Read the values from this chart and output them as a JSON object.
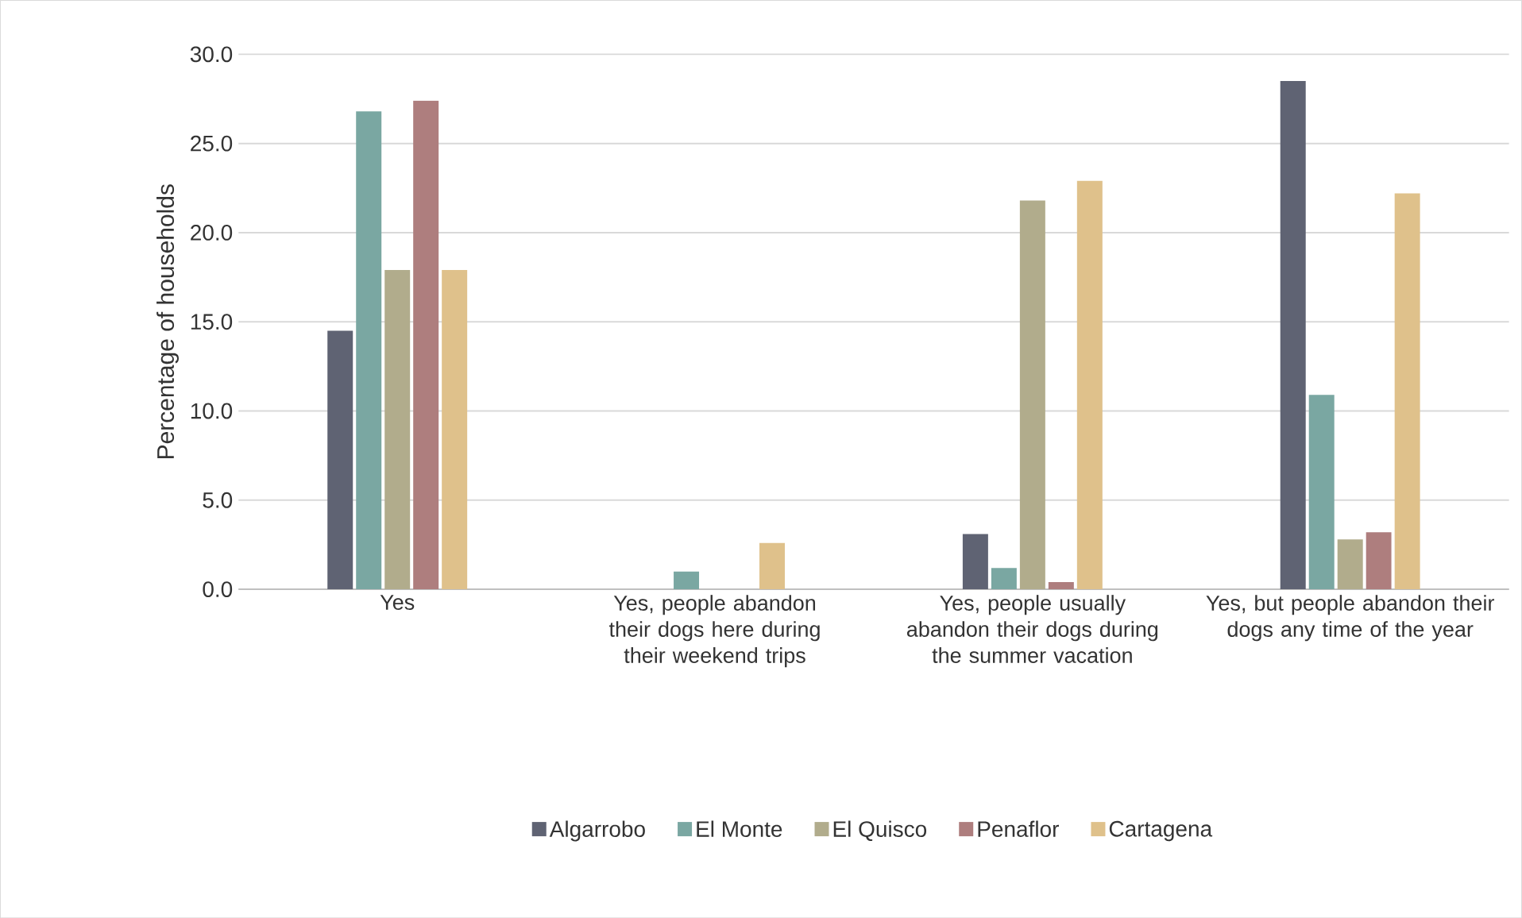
{
  "chart_data": {
    "type": "bar",
    "ylabel": "Percentage of households",
    "categories": [
      "Yes",
      "Yes, people abandon their dogs here during their weekend trips",
      "Yes, people usually abandon their dogs during the summer vacation",
      "Yes, but people abandon their dogs any time of the year"
    ],
    "series": [
      {
        "name": "Algarrobo",
        "color": "#5f6373",
        "values": [
          14.5,
          0,
          3.1,
          28.5
        ]
      },
      {
        "name": "El Monte",
        "color": "#7aa7a2",
        "values": [
          26.8,
          1.0,
          1.2,
          10.9
        ]
      },
      {
        "name": "El Quisco",
        "color": "#b1ac8c",
        "values": [
          17.9,
          0,
          21.8,
          2.8
        ]
      },
      {
        "name": "Penaflor",
        "color": "#ae7e7e",
        "values": [
          27.4,
          0,
          0.4,
          3.2
        ]
      },
      {
        "name": "Cartagena",
        "color": "#dfc18b",
        "values": [
          17.9,
          2.6,
          22.9,
          22.2
        ]
      }
    ],
    "ylim": [
      0,
      30
    ],
    "yticks": [
      {
        "value": 0,
        "label": "0.0"
      },
      {
        "value": 5,
        "label": "5.0"
      },
      {
        "value": 10,
        "label": "10.0"
      },
      {
        "value": 15,
        "label": "15.0"
      },
      {
        "value": 20,
        "label": "20.0"
      },
      {
        "value": 25,
        "label": "25.0"
      },
      {
        "value": 30,
        "label": "30.0"
      }
    ],
    "grid": "y",
    "legend": "bottom"
  }
}
